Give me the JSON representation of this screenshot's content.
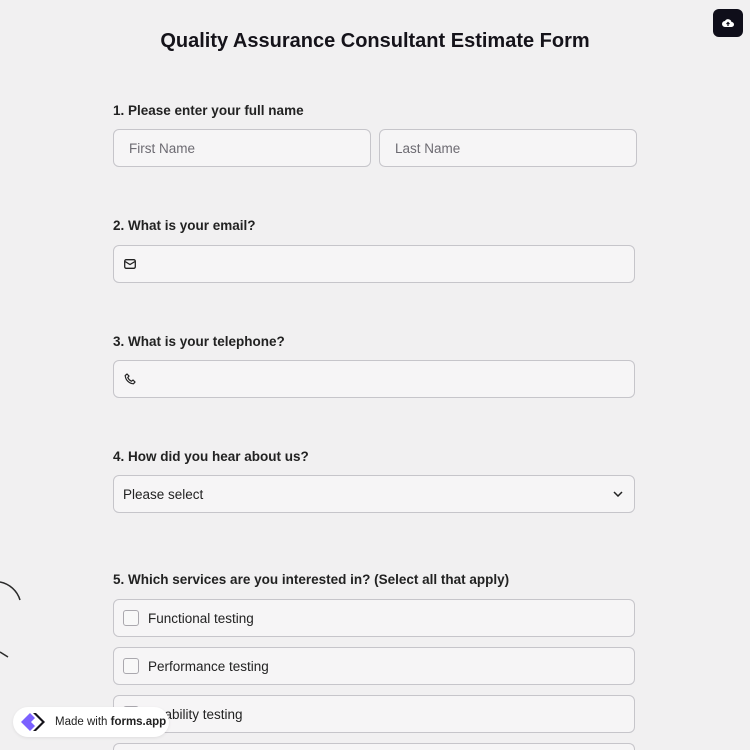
{
  "form": {
    "title": "Quality Assurance Consultant Estimate Form",
    "q1": {
      "label": "1.  Please enter your full name",
      "first_placeholder": "First Name",
      "last_placeholder": "Last Name"
    },
    "q2": {
      "label": "2. What is your email?",
      "icon": "mail-icon"
    },
    "q3": {
      "label": "3. What is your telephone?",
      "icon": "phone-icon"
    },
    "q4": {
      "label": "4. How did you hear about us?",
      "value": "Please select"
    },
    "q5": {
      "label": "5. Which services are you interested in? (Select all that apply)",
      "options": [
        "Functional testing",
        "Performance testing",
        "Usability testing"
      ]
    }
  },
  "badge": {
    "prefix": "Made with ",
    "brand": "forms.app"
  },
  "colors": {
    "accent": "#7b61ff",
    "save_button": "#0f0e1a"
  }
}
